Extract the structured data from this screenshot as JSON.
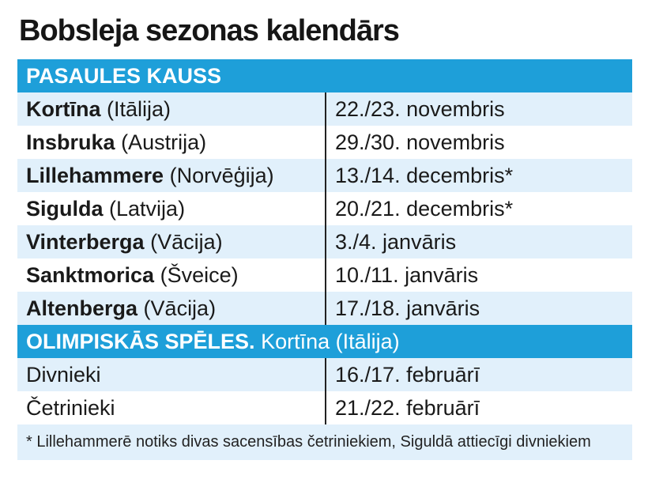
{
  "title": "Bobsleja sezonas kalendārs",
  "world_cup": {
    "header": "PASAULES KAUSS",
    "rows": [
      {
        "place": "Kortīna",
        "country": "(Itālija)",
        "date": "22./23. novembris"
      },
      {
        "place": "Insbruka",
        "country": "(Austrija)",
        "date": "29./30. novembris"
      },
      {
        "place": "Lillehammere",
        "country": "(Norvēģija)",
        "date": "13./14. decembris*"
      },
      {
        "place": "Sigulda",
        "country": "(Latvija)",
        "date": "20./21. decembris*"
      },
      {
        "place": "Vinterberga",
        "country": "(Vācija)",
        "date": "3./4. janvāris"
      },
      {
        "place": "Sanktmorica",
        "country": "(Šveice)",
        "date": "10./11. janvāris"
      },
      {
        "place": "Altenberga",
        "country": "(Vācija)",
        "date": "17./18. janvāris"
      }
    ]
  },
  "olympics": {
    "header_bold": "OLIMPISKĀS SPĒLES.",
    "header_rest": "Kortīna (Itālija)",
    "rows": [
      {
        "event": "Divnieki",
        "date": "16./17. februārī"
      },
      {
        "event": "Četrinieki",
        "date": "21./22. februārī"
      }
    ]
  },
  "footnote": "* Lillehammerē notiks divas sacensības četriniekiem, Siguldā attiecīgi divniekiem",
  "colors": {
    "section_bg": "#1e9fd9",
    "row_shade": "#e1f0fb"
  }
}
